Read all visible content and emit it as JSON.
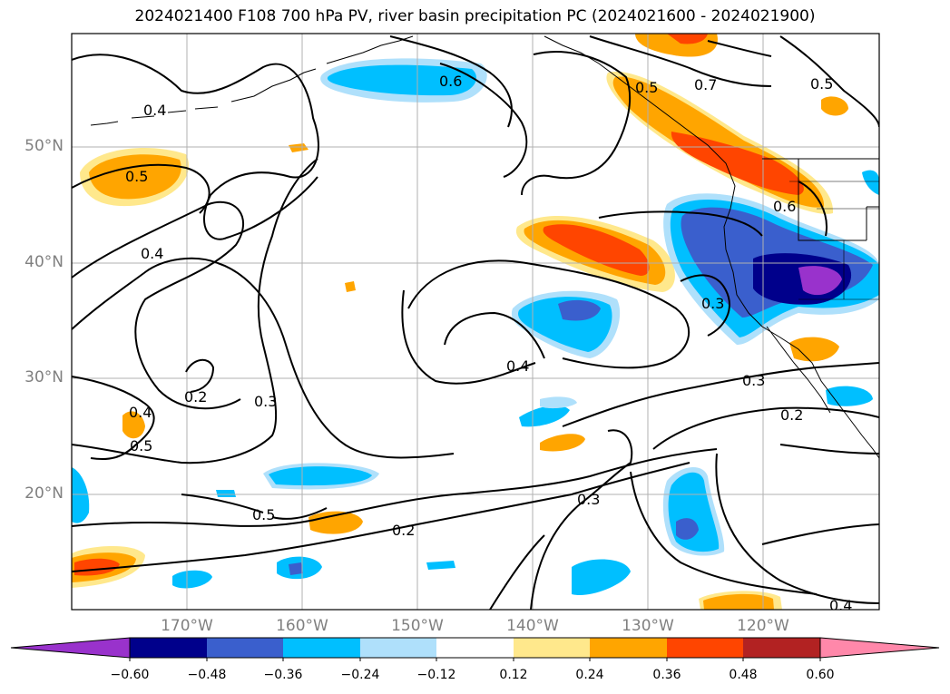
{
  "title": "2024021400 F108 700 hPa PV, river basin precipitation PC (2024021600 - 2024021900)",
  "map": {
    "lat_ticks": [
      "50°N",
      "40°N",
      "30°N",
      "20°N"
    ],
    "lon_ticks": [
      "170°W",
      "160°W",
      "150°W",
      "140°W",
      "130°W",
      "120°W"
    ],
    "gridlines": true
  },
  "pv_contour_labels": [
    "0.6",
    "0.7",
    "0.5",
    "0.5",
    "0.4",
    "0.5",
    "0.4",
    "0.6",
    "0.3",
    "0.4",
    "0.2",
    "0.3",
    "0.3",
    "0.2",
    "0.4",
    "0.5",
    "0.5",
    "0.2",
    "0.3",
    "0.4"
  ],
  "colorbar": {
    "ticks": [
      "−0.60",
      "−0.48",
      "−0.36",
      "−0.24",
      "−0.12",
      "0.12",
      "0.24",
      "0.36",
      "0.48",
      "0.60"
    ],
    "colors": [
      "#9932cc",
      "#00008b",
      "#3a5fcd",
      "#00bfff",
      "#afe0fb",
      "#ffffff",
      "#ffe88c",
      "#ffa500",
      "#ff4500",
      "#b22222",
      "#ff88aa"
    ],
    "extend": "both"
  }
}
